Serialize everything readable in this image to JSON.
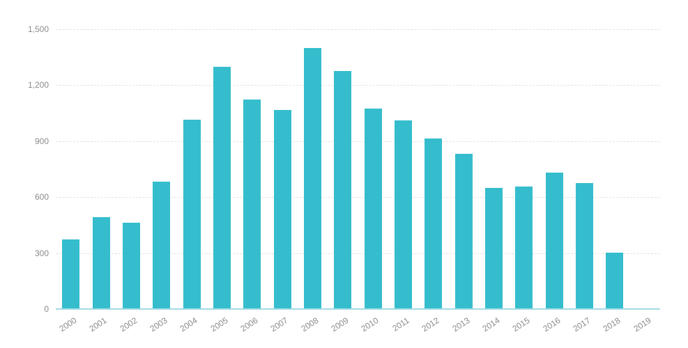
{
  "chart_data": {
    "type": "bar",
    "title": "",
    "xlabel": "",
    "ylabel": "",
    "categories": [
      "2000",
      "2001",
      "2002",
      "2003",
      "2004",
      "2005",
      "2006",
      "2007",
      "2008",
      "2009",
      "2010",
      "2011",
      "2012",
      "2013",
      "2014",
      "2015",
      "2016",
      "2017",
      "2018",
      "2019"
    ],
    "values": [
      372,
      494,
      464,
      683,
      1015,
      1300,
      1122,
      1068,
      1400,
      1277,
      1076,
      1011,
      914,
      831,
      648,
      658,
      732,
      674,
      301,
      0
    ],
    "ylim": [
      0,
      1500
    ],
    "yticks": [
      0,
      300,
      600,
      900,
      1200,
      1500
    ],
    "ytick_labels": [
      "0",
      "300",
      "600",
      "900",
      "1,200",
      "1,500"
    ],
    "grid": "horizontal-dashed",
    "legend": "none",
    "colors": {
      "bar": "#35bdcd",
      "axis_line": "#a2dbe3",
      "gridline": "#e2e2e2",
      "tick_label": "#8b8b8b",
      "background": "#ffffff"
    }
  }
}
